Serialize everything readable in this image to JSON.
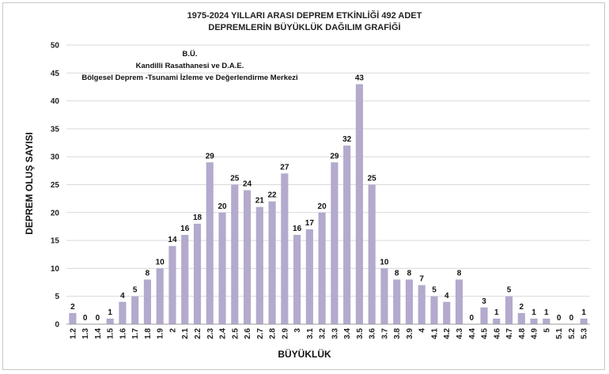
{
  "chart_data": {
    "type": "bar",
    "title_line1": "1975-2024 YILLARI ARASI DEPREM ETKİNLİĞİ 492 ADET",
    "title_line2": "DEPREMLERİN BÜYÜKLÜK DAĞILIM GRAFİĞİ",
    "source_line1": "B.Ü.",
    "source_line2": "Kandilli Rasathanesi ve D.A.E.",
    "source_line3": "Bölgesel Deprem -Tsunami İzleme ve Değerlendirme Merkezi",
    "xlabel": "BÜYÜKLÜK",
    "ylabel": "DEPREM OLUŞ SAYISI",
    "ylim": [
      0,
      50
    ],
    "yticks": [
      0,
      5,
      10,
      15,
      20,
      25,
      30,
      35,
      40,
      45,
      50
    ],
    "grid": true,
    "bar_color": "#b3aacd",
    "categories": [
      "1.2",
      "1.3",
      "1.4",
      "1.5",
      "1.6",
      "1.7",
      "1.8",
      "1.9",
      "2",
      "2.1",
      "2.2",
      "2.3",
      "2.4",
      "2.5",
      "2.6",
      "2.7",
      "2.8",
      "2.9",
      "3",
      "3.1",
      "3.2",
      "3.3",
      "3.4",
      "3.5",
      "3.6",
      "3.7",
      "3.8",
      "3.9",
      "4",
      "4.1",
      "4.2",
      "4.3",
      "4.4",
      "4.5",
      "4.6",
      "4.7",
      "4.8",
      "4.9",
      "5",
      "5.1",
      "5.2",
      "5.3"
    ],
    "values": [
      2,
      0,
      0,
      1,
      4,
      5,
      8,
      10,
      14,
      16,
      18,
      29,
      20,
      25,
      24,
      21,
      22,
      27,
      16,
      17,
      20,
      29,
      32,
      43,
      25,
      10,
      8,
      8,
      7,
      5,
      4,
      8,
      0,
      3,
      1,
      5,
      2,
      1,
      1,
      0,
      0,
      1
    ]
  }
}
